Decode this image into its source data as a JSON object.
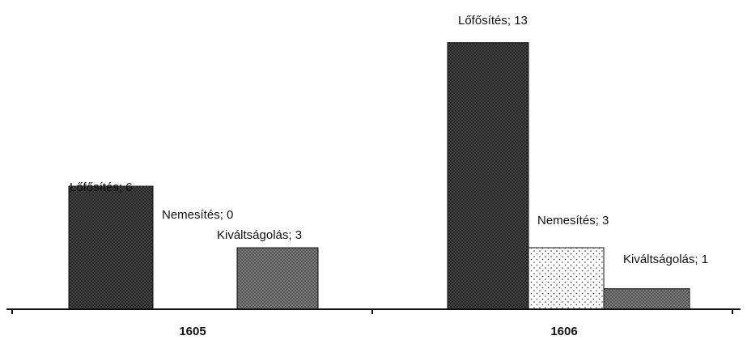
{
  "chart_data": {
    "type": "bar",
    "categories": [
      "1605",
      "1606"
    ],
    "series": [
      {
        "values": [
          6,
          13
        ],
        "label_names": [
          "Lőfősítés",
          "Lőfősítés"
        ],
        "color": "#2b2b2b",
        "pattern": "dense-dots-dark"
      },
      {
        "values": [
          0,
          3
        ],
        "label_names": [
          "Nemesítés",
          "Nemesítés"
        ],
        "color": "#ffffff",
        "pattern": "sparse-dots-light"
      },
      {
        "values": [
          3,
          1
        ],
        "label_names": [
          "Kiváltságolás",
          "Kiváltságolás"
        ],
        "color": "#6a6a6a",
        "pattern": "dots-medium"
      }
    ],
    "data_labels": [
      [
        "Lőfősítés; 6",
        "Lőfősítés; 13"
      ],
      [
        "Nemesítés; 0",
        "Nemesítés; 3"
      ],
      [
        "Kiváltságolás; 3",
        "Kiváltságolás; 1"
      ]
    ],
    "ylim": [
      0,
      13.5
    ],
    "grid": false,
    "legend": "none",
    "title": "",
    "xlabel": "",
    "ylabel": ""
  }
}
